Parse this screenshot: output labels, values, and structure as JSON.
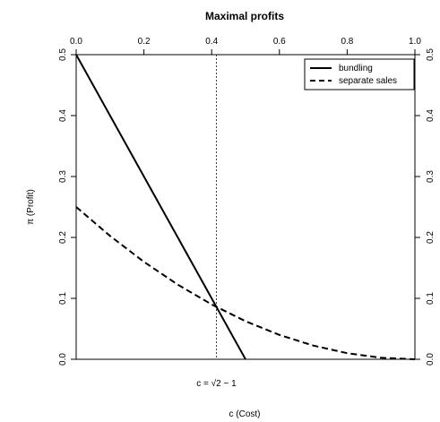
{
  "chart_data": {
    "type": "line",
    "title": "Maximal profits",
    "xlabel": "c (Cost)",
    "ylabel": "π (Profit)",
    "xlim": [
      0,
      1
    ],
    "ylim": [
      0,
      0.5
    ],
    "x_ticks": [
      "0.0",
      "0.2",
      "0.4",
      "0.6",
      "0.8",
      "1.0"
    ],
    "y_ticks": [
      "0.0",
      "0.1",
      "0.2",
      "0.3",
      "0.4",
      "0.5"
    ],
    "grid": false,
    "legend_position": "top-right",
    "series": [
      {
        "name": "bundling",
        "style": "solid",
        "x": [
          0.0,
          0.1,
          0.2,
          0.3,
          0.4,
          0.5
        ],
        "y": [
          0.5,
          0.4,
          0.3,
          0.2,
          0.1,
          0.0
        ]
      },
      {
        "name": "separate sales",
        "style": "dashed",
        "x": [
          0.0,
          0.1,
          0.2,
          0.3,
          0.4,
          0.5,
          0.6,
          0.7,
          0.8,
          0.9,
          1.0
        ],
        "y": [
          0.25,
          0.2025,
          0.16,
          0.1225,
          0.09,
          0.0625,
          0.04,
          0.0225,
          0.01,
          0.0025,
          0.0
        ]
      }
    ],
    "annotations": [
      {
        "type": "vline",
        "x": 0.414,
        "color": "#cc0000",
        "style": "dotted",
        "label": "c = √2 − 1"
      }
    ]
  }
}
